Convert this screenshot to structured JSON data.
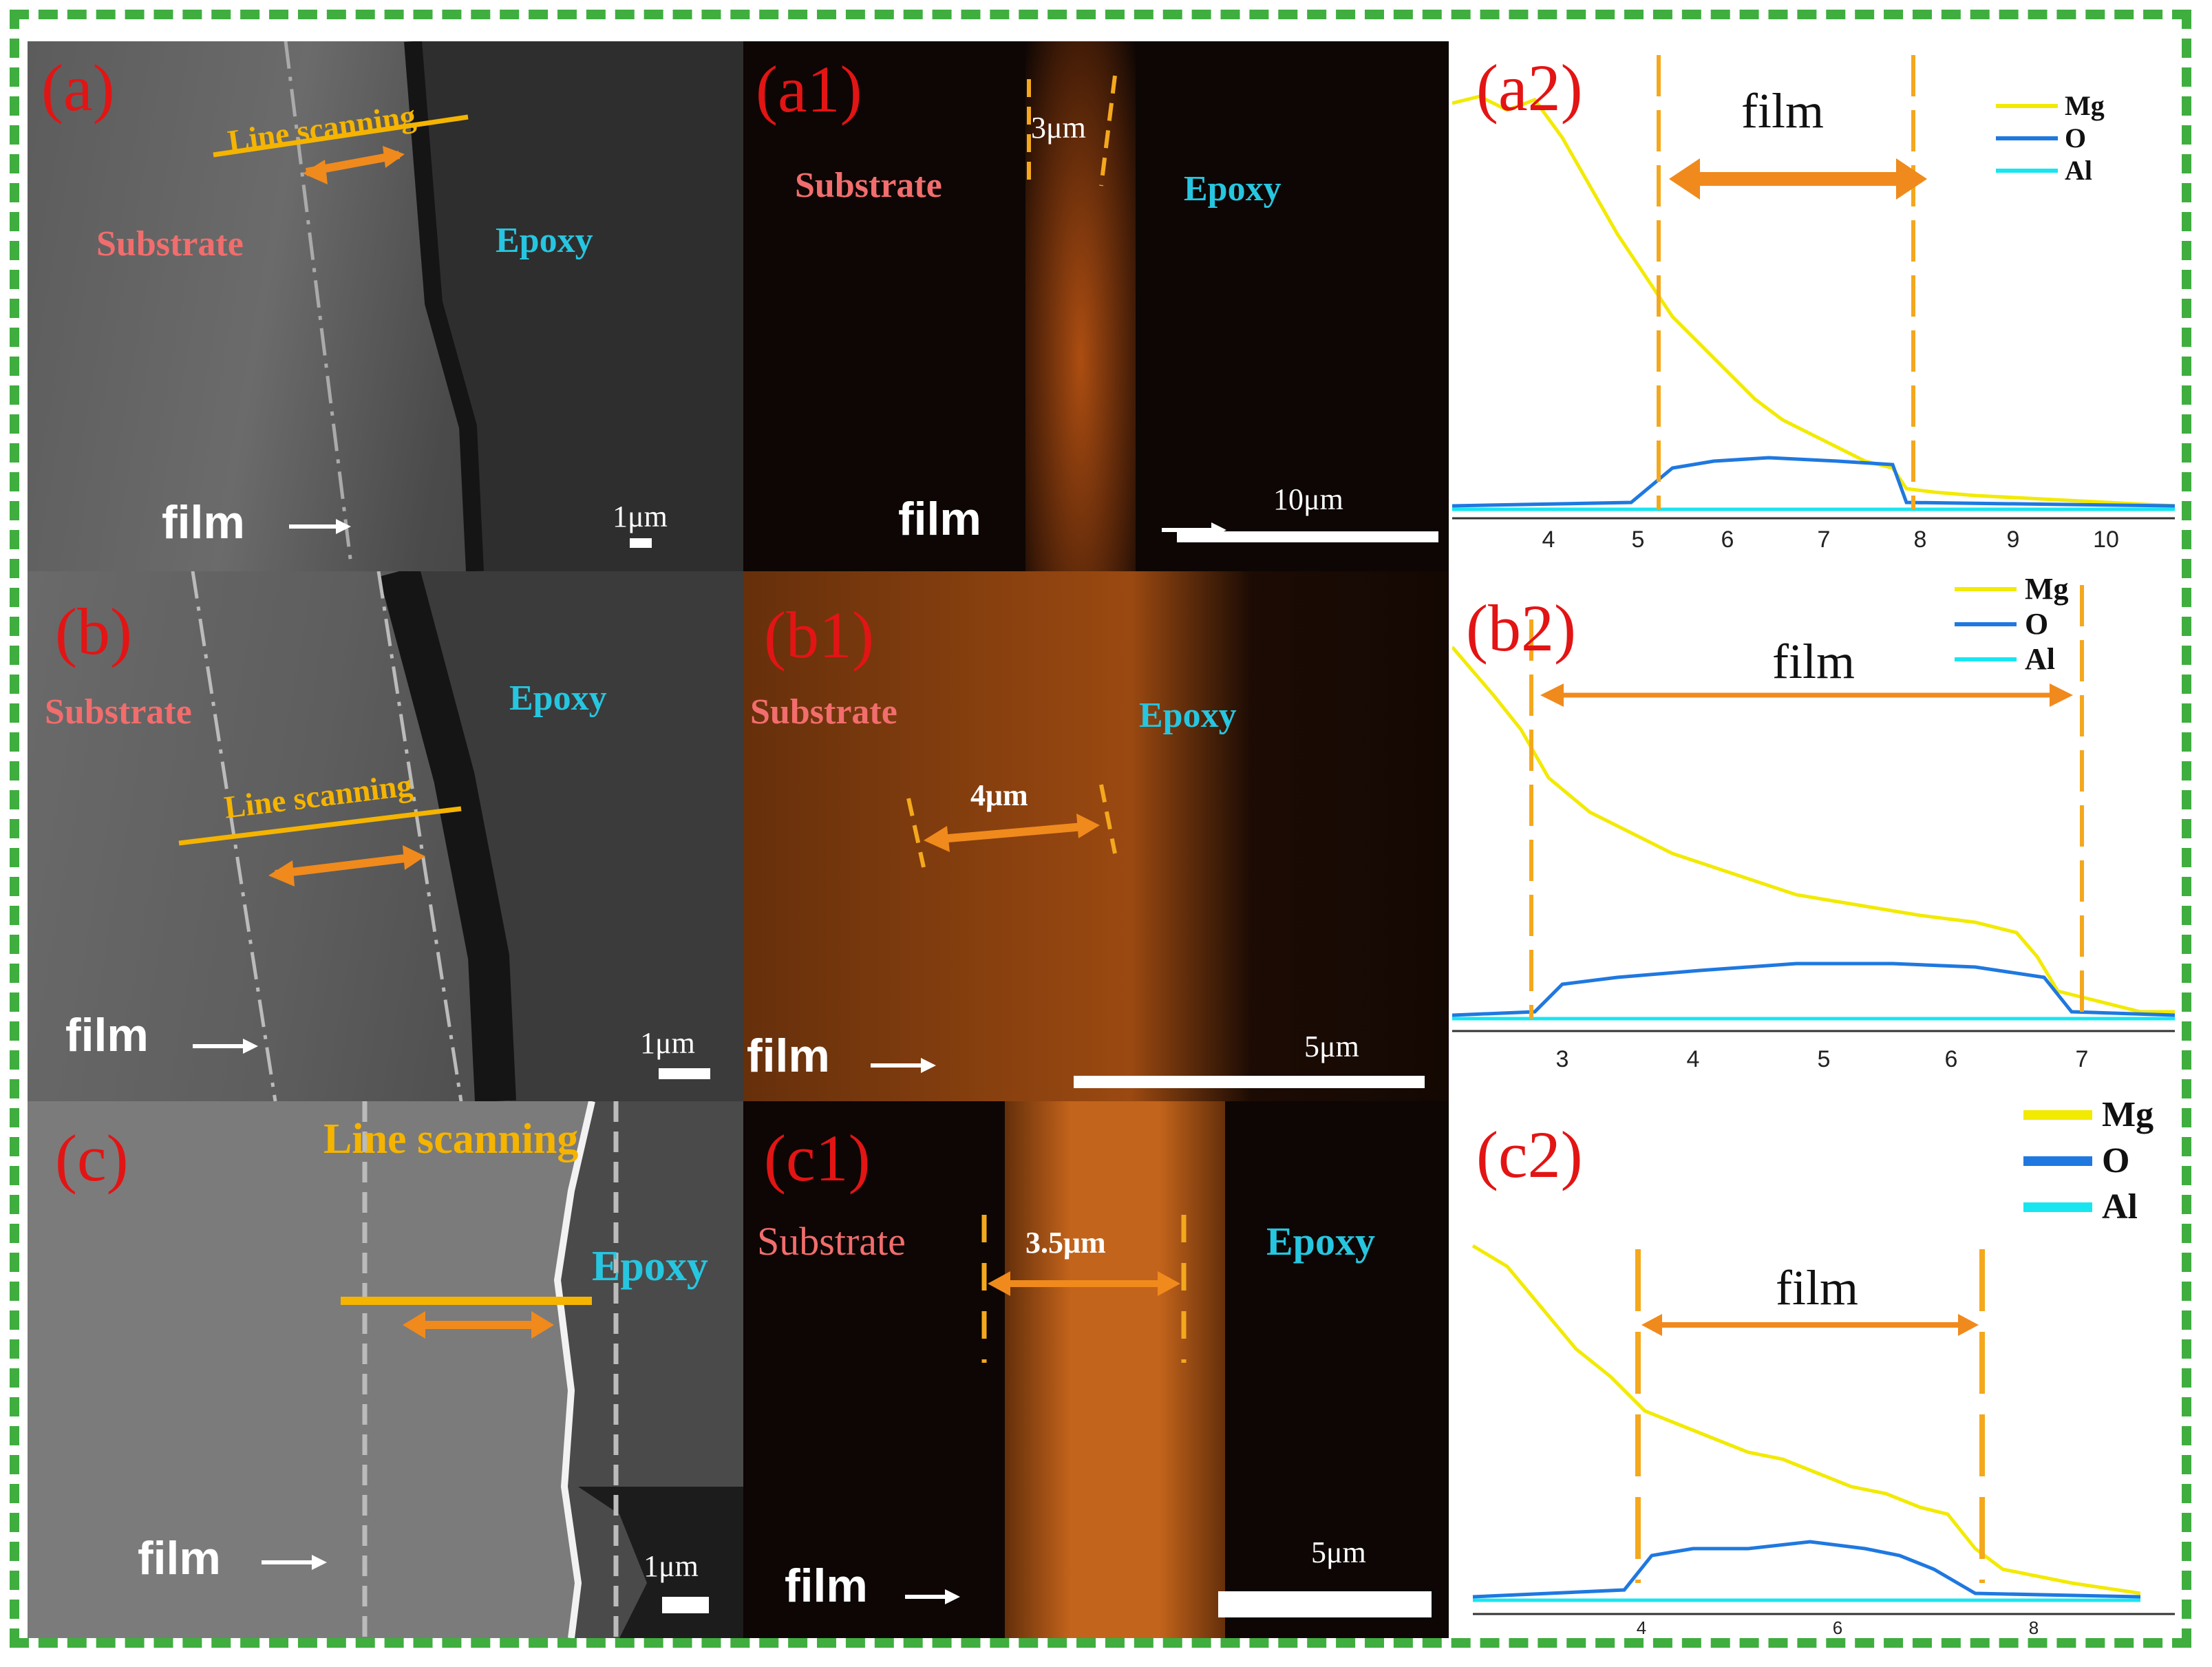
{
  "panels": {
    "a": {
      "label": "(a)",
      "substrate": "Substrate",
      "epoxy": "Epoxy",
      "film": "film",
      "line_scan": "Line scanning",
      "scale": "1μm"
    },
    "a1": {
      "label": "(a1)",
      "substrate": "Substrate",
      "epoxy": "Epoxy",
      "film": "film",
      "thickness": "3μm",
      "scale": "10μm"
    },
    "a2": {
      "label": "(a2)",
      "film": "film",
      "ticks": [
        "4",
        "5",
        "6",
        "7",
        "8",
        "9",
        "10"
      ]
    },
    "b": {
      "label": "(b)",
      "substrate": "Substrate",
      "epoxy": "Epoxy",
      "film": "film",
      "line_scan": "Line scanning",
      "scale": "1μm"
    },
    "b1": {
      "label": "(b1)",
      "substrate": "Substrate",
      "epoxy": "Epoxy",
      "film": "film",
      "thickness": "4μm",
      "scale": "5μm"
    },
    "b2": {
      "label": "(b2)",
      "film": "film",
      "ticks": [
        "3",
        "4",
        "5",
        "6",
        "7"
      ]
    },
    "c": {
      "label": "(c)",
      "epoxy": "Epoxy",
      "film": "film",
      "line_scan": "Line scanning",
      "scale": "1μm"
    },
    "c1": {
      "label": "(c1)",
      "substrate": "Substrate",
      "epoxy": "Epoxy",
      "film": "film",
      "thickness": "3.5μm",
      "scale": "5μm"
    },
    "c2": {
      "label": "(c2)",
      "film": "film",
      "ticks": [
        "4",
        "6",
        "8"
      ]
    }
  },
  "legend": {
    "mg": "Mg",
    "o": "O",
    "al": "Al"
  },
  "colors": {
    "mg": "#f2ea00",
    "o": "#1f78e0",
    "al": "#17e6f0",
    "marker": "#f4a81d",
    "arrow": "#f08a1c",
    "frame": "#3fae3f",
    "label": "#e31414"
  }
}
